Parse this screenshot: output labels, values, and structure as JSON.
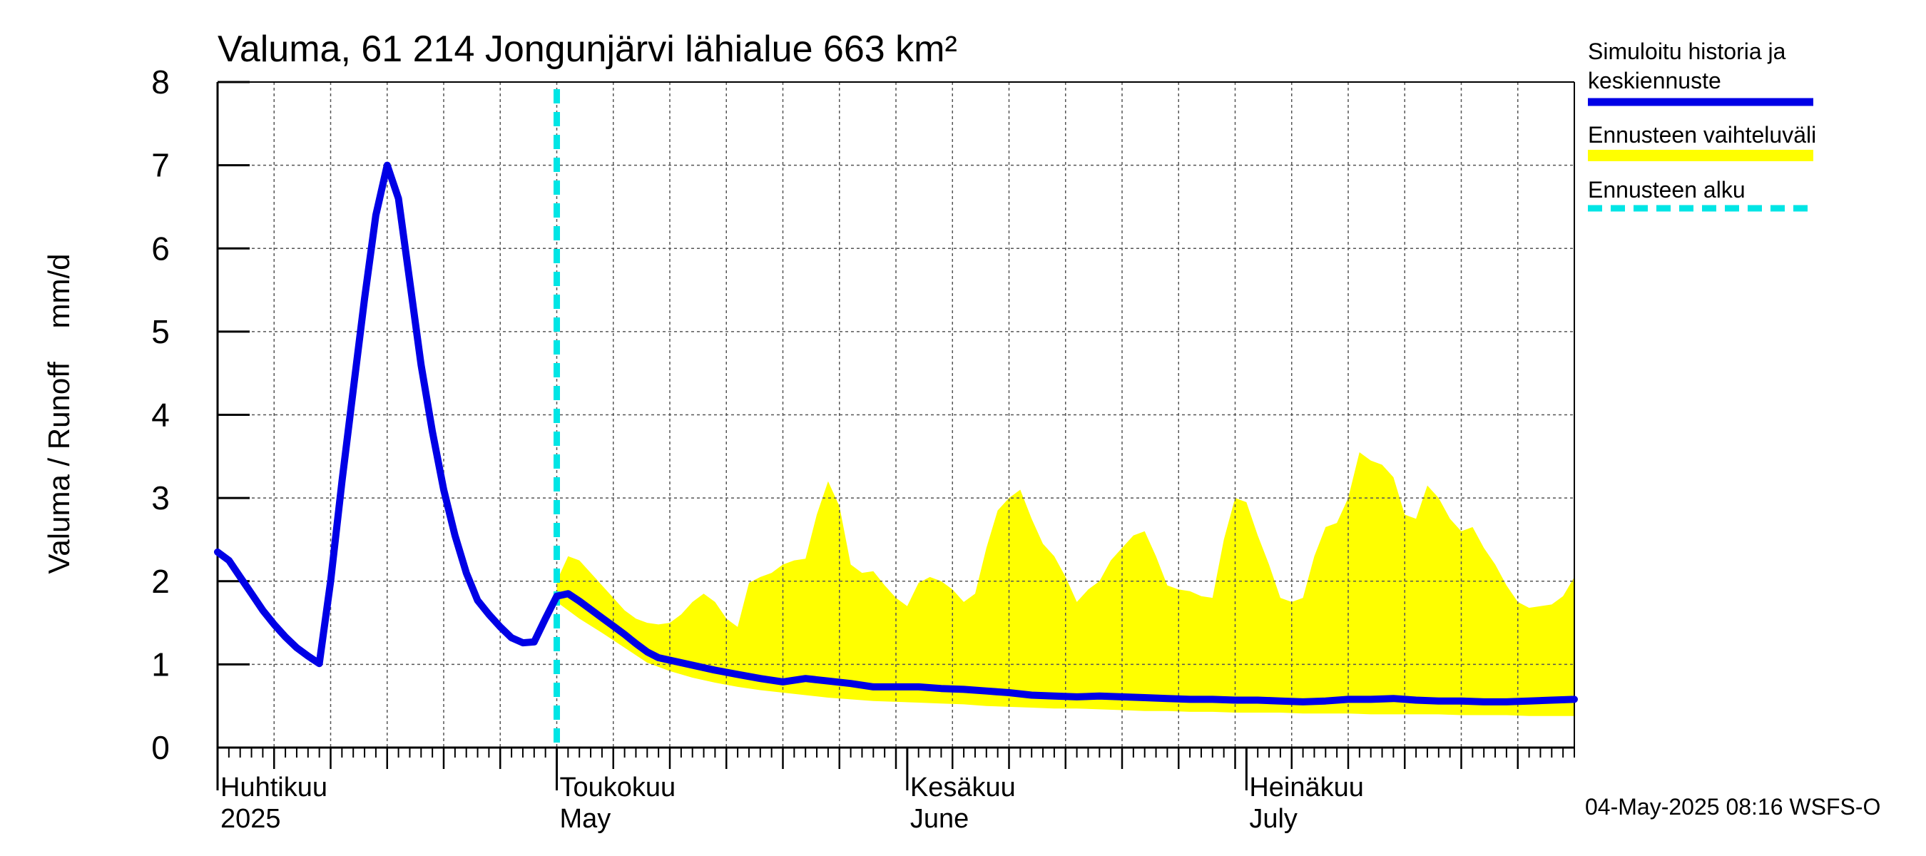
{
  "chart_data": {
    "type": "line",
    "title": "Valuma, 61 214 Jongunjärvi lähialue 663 km²",
    "ylabel": "Valuma / Runoff    mm/d",
    "ylim": [
      0,
      8
    ],
    "yticks": [
      0,
      1,
      2,
      3,
      4,
      5,
      6,
      7,
      8
    ],
    "x_range_days": [
      0,
      120
    ],
    "month_labels": [
      {
        "day": 0,
        "line1": "Huhtikuu",
        "line2": "2025"
      },
      {
        "day": 30,
        "line1": "Toukokuu",
        "line2": "May"
      },
      {
        "day": 61,
        "line1": "Kesäkuu",
        "line2": "June"
      },
      {
        "day": 91,
        "line1": "Heinäkuu",
        "line2": "July"
      }
    ],
    "forecast_start_day": 30,
    "legend": {
      "history_label_line1": "Simuloitu historia ja",
      "history_label_line2": "keskiennuste",
      "range_label": "Ennusteen vaihteluväli",
      "start_label": "Ennusteen alku"
    },
    "colors": {
      "history": "#0000e6",
      "range": "#ffff00",
      "start": "#00e5e5",
      "grid": "#555555"
    },
    "footer": "04-May-2025 08:16 WSFS-O",
    "series": [
      {
        "name": "Simuloitu historia ja keskiennuste",
        "x": [
          0,
          1,
          2,
          3,
          4,
          5,
          6,
          7,
          8,
          9,
          10,
          11,
          12,
          13,
          14,
          15,
          16,
          17,
          18,
          19,
          20,
          21,
          22,
          23,
          24,
          25,
          26,
          27,
          28,
          29,
          30,
          31,
          32,
          33,
          34,
          35,
          36,
          37,
          38,
          39,
          40,
          42,
          44,
          46,
          48,
          50,
          52,
          54,
          56,
          58,
          60,
          62,
          64,
          66,
          68,
          70,
          72,
          74,
          76,
          78,
          80,
          82,
          84,
          86,
          88,
          90,
          92,
          94,
          96,
          98,
          100,
          102,
          104,
          106,
          108,
          110,
          112,
          114,
          116,
          118,
          120
        ],
        "y": [
          2.35,
          2.25,
          2.05,
          1.85,
          1.65,
          1.48,
          1.33,
          1.2,
          1.1,
          1.01,
          2.0,
          3.2,
          4.3,
          5.4,
          6.4,
          7.0,
          6.6,
          5.6,
          4.6,
          3.8,
          3.1,
          2.55,
          2.1,
          1.77,
          1.6,
          1.45,
          1.32,
          1.26,
          1.27,
          1.55,
          1.82,
          1.85,
          1.76,
          1.66,
          1.56,
          1.46,
          1.36,
          1.25,
          1.15,
          1.08,
          1.05,
          0.99,
          0.93,
          0.88,
          0.83,
          0.79,
          0.83,
          0.8,
          0.77,
          0.73,
          0.73,
          0.73,
          0.71,
          0.7,
          0.68,
          0.66,
          0.63,
          0.62,
          0.61,
          0.62,
          0.61,
          0.6,
          0.59,
          0.58,
          0.58,
          0.57,
          0.57,
          0.56,
          0.55,
          0.56,
          0.58,
          0.58,
          0.59,
          0.57,
          0.56,
          0.56,
          0.55,
          0.55,
          0.56,
          0.57,
          0.58
        ]
      },
      {
        "name": "Ennusteen vaihteluväli (upper)",
        "x": [
          30,
          31,
          32,
          33,
          34,
          35,
          36,
          37,
          38,
          39,
          40,
          41,
          42,
          43,
          44,
          45,
          46,
          47,
          48,
          49,
          50,
          51,
          52,
          53,
          54,
          55,
          56,
          57,
          58,
          59,
          60,
          61,
          62,
          63,
          64,
          65,
          66,
          67,
          68,
          69,
          70,
          71,
          72,
          73,
          74,
          75,
          76,
          77,
          78,
          79,
          80,
          81,
          82,
          83,
          84,
          85,
          86,
          87,
          88,
          89,
          90,
          91,
          92,
          93,
          94,
          95,
          96,
          97,
          98,
          99,
          100,
          101,
          102,
          103,
          104,
          105,
          106,
          107,
          108,
          109,
          110,
          111,
          112,
          113,
          114,
          115,
          116,
          117,
          118,
          119,
          120
        ],
        "y": [
          2.0,
          2.3,
          2.25,
          2.1,
          1.95,
          1.8,
          1.65,
          1.55,
          1.5,
          1.48,
          1.5,
          1.6,
          1.75,
          1.85,
          1.75,
          1.55,
          1.45,
          1.98,
          2.05,
          2.1,
          2.2,
          2.25,
          2.27,
          2.8,
          3.2,
          2.9,
          2.2,
          2.1,
          2.12,
          1.95,
          1.8,
          1.7,
          1.98,
          2.05,
          2.0,
          1.9,
          1.75,
          1.85,
          2.4,
          2.85,
          3.0,
          3.1,
          2.75,
          2.45,
          2.3,
          2.05,
          1.75,
          1.9,
          2.0,
          2.25,
          2.4,
          2.55,
          2.6,
          2.3,
          1.95,
          1.9,
          1.88,
          1.82,
          1.8,
          2.5,
          3.0,
          2.95,
          2.55,
          2.2,
          1.8,
          1.75,
          1.8,
          2.3,
          2.65,
          2.7,
          3.0,
          3.55,
          3.45,
          3.4,
          3.25,
          2.8,
          2.75,
          3.15,
          3.0,
          2.75,
          2.6,
          2.65,
          2.4,
          2.2,
          1.95,
          1.75,
          1.68,
          1.7,
          1.72,
          1.82,
          2.05
        ]
      },
      {
        "name": "Ennusteen vaihteluväli (lower)",
        "x": [
          30,
          32,
          34,
          36,
          38,
          40,
          42,
          44,
          46,
          48,
          50,
          52,
          54,
          56,
          58,
          60,
          62,
          64,
          66,
          68,
          70,
          72,
          74,
          76,
          78,
          80,
          82,
          84,
          86,
          88,
          90,
          92,
          94,
          96,
          98,
          100,
          102,
          104,
          106,
          108,
          110,
          112,
          114,
          116,
          118,
          120
        ],
        "y": [
          1.75,
          1.55,
          1.38,
          1.2,
          1.02,
          0.92,
          0.84,
          0.78,
          0.73,
          0.69,
          0.66,
          0.63,
          0.6,
          0.58,
          0.56,
          0.55,
          0.54,
          0.53,
          0.52,
          0.5,
          0.49,
          0.48,
          0.47,
          0.47,
          0.46,
          0.45,
          0.44,
          0.44,
          0.43,
          0.43,
          0.42,
          0.42,
          0.42,
          0.41,
          0.41,
          0.41,
          0.4,
          0.4,
          0.4,
          0.4,
          0.39,
          0.39,
          0.39,
          0.38,
          0.38,
          0.38
        ]
      }
    ]
  }
}
